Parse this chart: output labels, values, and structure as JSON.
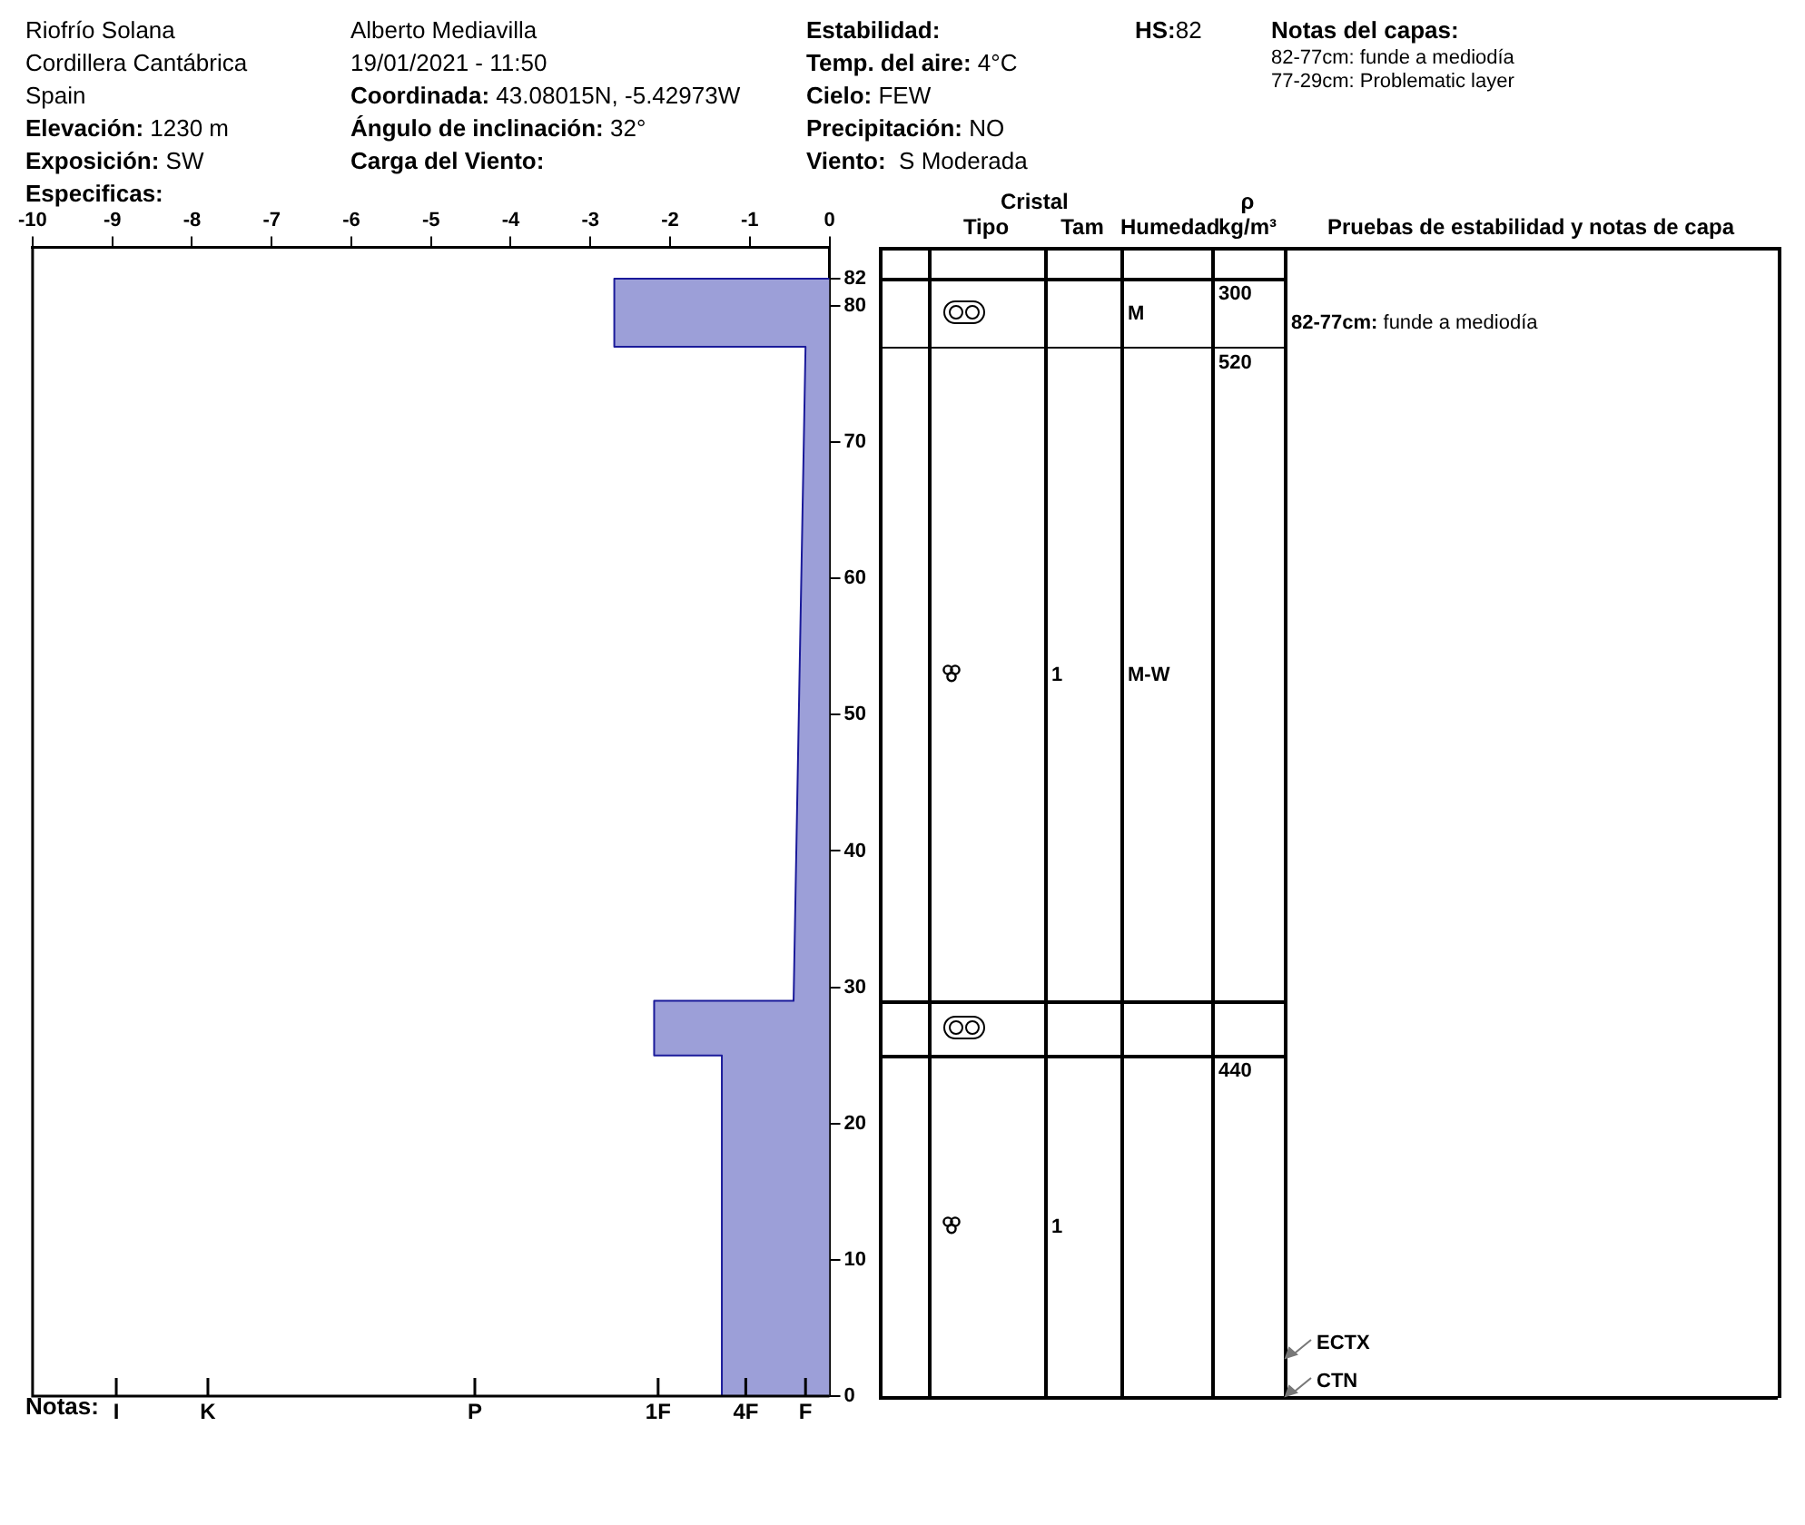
{
  "chart_data": [
    {
      "type": "area",
      "annotations": [
        "Riofrío Solana",
        "Cordillera Cantábrica",
        "Spain",
        "Elevación: 1230 m",
        "Exposición: SW",
        "Especificas:",
        "Alberto Mediavilla",
        "19/01/2021 - 11:50",
        "Coordinada: 43.08015N, -5.42973W",
        "Ángulo de inclinación: 32°",
        "Carga del Viento:",
        "Estabilidad:",
        "Temp. del aire: 4°C",
        "Cielo: FEW",
        "Precipitación: NO",
        "Viento:  S Moderada",
        "HS:82",
        "Notas del capas:",
        "82-77cm: funde a mediodía",
        "77-29cm: Problematic layer",
        "Notas:",
        "I",
        "K",
        "P",
        "1F",
        "4F",
        "F"
      ],
      "series": [
        {
          "color": "#9c9fd8",
          "x": [
            0,
            -2.7,
            -2.7,
            -0.3,
            -0.45,
            -2.2,
            -2.2,
            -1.35,
            -1.35,
            0
          ],
          "values": [
            82,
            82,
            77,
            77,
            29,
            29,
            25,
            25,
            0,
            0
          ]
        }
      ],
      "xlim": [
        -10,
        0
      ],
      "xticks": [
        -10,
        -9,
        -8,
        -7,
        -6,
        -5,
        -4,
        -3,
        -2,
        -1,
        0
      ],
      "ylim": [
        0,
        84.3
      ],
      "yticks": [
        0,
        10,
        20,
        30,
        40,
        50,
        60,
        70,
        80,
        82
      ],
      "grid": false,
      "legend": false
    },
    {
      "type": "other",
      "title": "Cristal",
      "categories": [
        "Tipo",
        "Tam",
        "Humedad",
        "ρ kg/m³",
        "Pruebas de estabilidad y notas de capa"
      ],
      "annotations": [
        "M",
        "300",
        "82-77cm: funde a mediodía",
        "520",
        "1",
        "M-W",
        "440",
        "1",
        "ECTX",
        "CTN"
      ]
    }
  ]
}
